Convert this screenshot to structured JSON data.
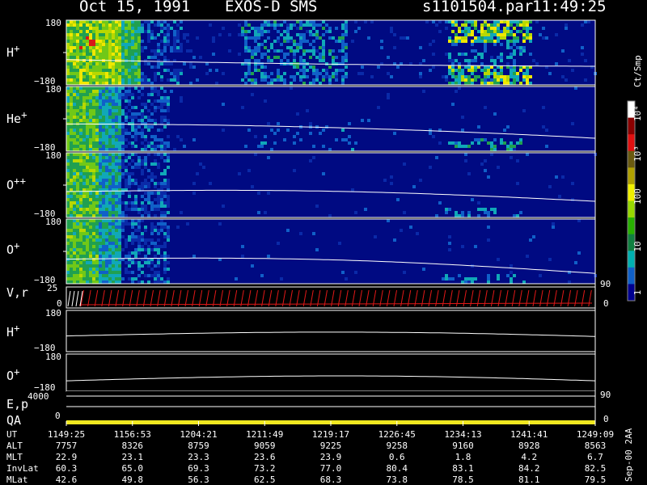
{
  "header": {
    "date": "Oct 15, 1991",
    "instrument": "EXOS-D SMS",
    "file": "s1101504.par",
    "time": "11:49:25"
  },
  "colorbar": {
    "unit": "Ct/Smp",
    "ticks": [
      "10⁴",
      "10³",
      "100",
      "10",
      "1"
    ],
    "colors": [
      "#ffffff",
      "#8a0000",
      "#e01010",
      "#6a5a10",
      "#b0a000",
      "#f0f000",
      "#98d800",
      "#28b000",
      "#108040",
      "#00b0b0",
      "#1060c8",
      "#000090"
    ]
  },
  "chart_data": {
    "type": "heatmap",
    "title": "Oct 15, 1991   EXOS-D SMS",
    "panels": [
      {
        "label": "H+",
        "kind": "spectrogram",
        "ylim": [
          -180,
          180
        ],
        "ytick_labels": [
          "180",
          "-180"
        ]
      },
      {
        "label": "He+",
        "kind": "spectrogram",
        "ylim": [
          -180,
          180
        ],
        "ytick_labels": [
          "180",
          "-180"
        ]
      },
      {
        "label": "O++",
        "kind": "spectrogram",
        "ylim": [
          -180,
          180
        ],
        "ytick_labels": [
          "180",
          "-180"
        ]
      },
      {
        "label": "O+",
        "kind": "spectrogram",
        "ylim": [
          -180,
          180
        ],
        "ytick_labels": [
          "180",
          "-180"
        ],
        "right_tick": "90"
      },
      {
        "label": "V,r",
        "kind": "line",
        "ylim": [
          0,
          25
        ],
        "ytick_labels": [
          "25",
          "0"
        ],
        "right_tick": "0"
      },
      {
        "label": "H+",
        "kind": "line",
        "ylim": [
          -180,
          180
        ],
        "ytick_labels": [
          "180",
          "-180"
        ]
      },
      {
        "label": "O+",
        "kind": "line",
        "ylim": [
          -180,
          180
        ],
        "ytick_labels": [
          "180",
          "-180"
        ]
      },
      {
        "label": "E,p",
        "kind": "line",
        "ytick_labels": [
          "4000"
        ],
        "right_tick": "90"
      },
      {
        "label": "QA",
        "kind": "flag",
        "ytick_labels": [
          "0"
        ],
        "right_tick": "0"
      }
    ],
    "ut_axis": {
      "rows": [
        {
          "name": "UT",
          "values": [
            "1149:25",
            "1156:53",
            "1204:21",
            "1211:49",
            "1219:17",
            "1226:45",
            "1234:13",
            "1241:41",
            "1249:09"
          ]
        },
        {
          "name": "ALT",
          "values": [
            "7757",
            "8326",
            "8759",
            "9059",
            "9225",
            "9258",
            "9160",
            "8928",
            "8563"
          ]
        },
        {
          "name": "MLT",
          "values": [
            "22.9",
            "23.1",
            "23.3",
            "23.6",
            "23.9",
            "0.6",
            "1.8",
            "4.2",
            "6.7"
          ]
        },
        {
          "name": "InvLat",
          "values": [
            "60.3",
            "65.0",
            "69.3",
            "73.2",
            "77.0",
            "80.4",
            "83.1",
            "84.2",
            "82.5"
          ]
        },
        {
          "name": "MLat",
          "values": [
            "42.6",
            "49.8",
            "56.3",
            "62.5",
            "68.3",
            "73.8",
            "78.5",
            "81.1",
            "79.5"
          ]
        }
      ]
    },
    "footer_note": "Sep-00  2AA"
  }
}
